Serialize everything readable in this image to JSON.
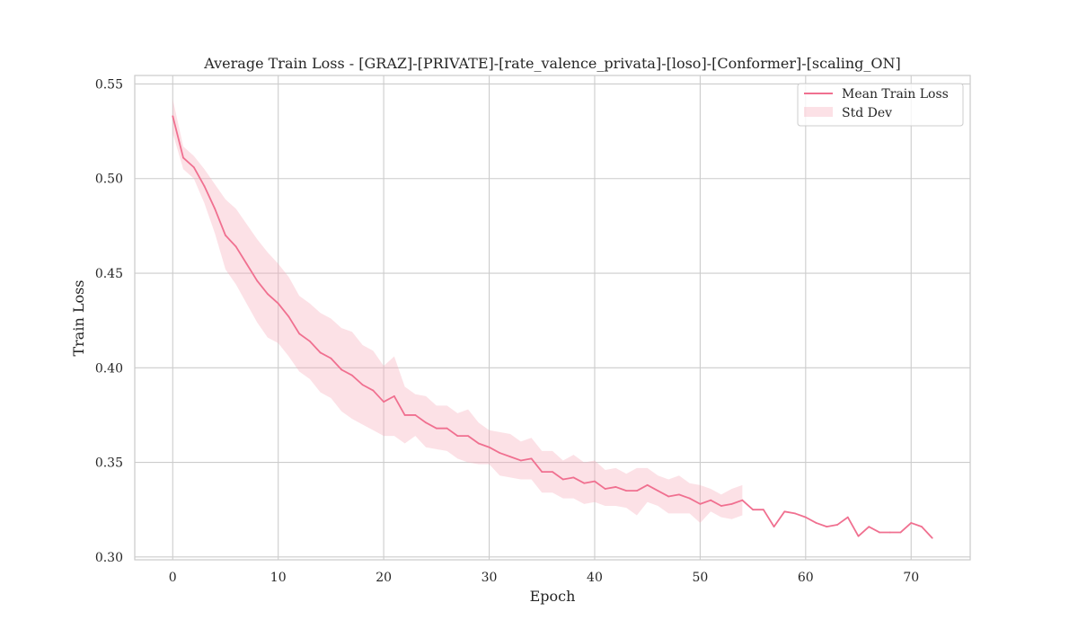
{
  "chart_data": {
    "type": "line",
    "title": "Average Train Loss - [GRAZ]-[PRIVATE]-[rate_valence_privata]-[loso]-[Conformer]-[scaling_ON]",
    "xlabel": "Epoch",
    "ylabel": "Train Loss",
    "xlim": [
      -3.6,
      75.6
    ],
    "ylim": [
      0.2985,
      0.5545
    ],
    "xticks": [
      0,
      10,
      20,
      30,
      40,
      50,
      60,
      70
    ],
    "yticks": [
      0.3,
      0.35,
      0.4,
      0.45,
      0.5,
      0.55
    ],
    "xtick_labels": [
      "0",
      "10",
      "20",
      "30",
      "40",
      "50",
      "60",
      "70"
    ],
    "ytick_labels": [
      "0.30",
      "0.35",
      "0.40",
      "0.45",
      "0.50",
      "0.55"
    ],
    "grid": true,
    "legend_position": "top-right",
    "series": [
      {
        "name": "Mean Train Loss",
        "type": "line",
        "color": "#f07090",
        "x": [
          0,
          1,
          2,
          3,
          4,
          5,
          6,
          7,
          8,
          9,
          10,
          11,
          12,
          13,
          14,
          15,
          16,
          17,
          18,
          19,
          20,
          21,
          22,
          23,
          24,
          25,
          26,
          27,
          28,
          29,
          30,
          31,
          32,
          33,
          34,
          35,
          36,
          37,
          38,
          39,
          40,
          41,
          42,
          43,
          44,
          45,
          46,
          47,
          48,
          49,
          50,
          51,
          52,
          53,
          54,
          55,
          56,
          57,
          58,
          59,
          60,
          61,
          62,
          63,
          64,
          65,
          66,
          67,
          68,
          69,
          70,
          71,
          72
        ],
        "y": [
          0.533,
          0.511,
          0.506,
          0.496,
          0.484,
          0.47,
          0.464,
          0.455,
          0.446,
          0.439,
          0.434,
          0.427,
          0.418,
          0.414,
          0.408,
          0.405,
          0.399,
          0.396,
          0.391,
          0.388,
          0.382,
          0.385,
          0.375,
          0.375,
          0.371,
          0.368,
          0.368,
          0.364,
          0.364,
          0.36,
          0.358,
          0.355,
          0.353,
          0.351,
          0.352,
          0.345,
          0.345,
          0.341,
          0.342,
          0.339,
          0.34,
          0.336,
          0.337,
          0.335,
          0.335,
          0.338,
          0.335,
          0.332,
          0.333,
          0.331,
          0.328,
          0.33,
          0.327,
          0.328,
          0.33,
          0.325,
          0.325,
          0.316,
          0.324,
          0.323,
          0.321,
          0.318,
          0.316,
          0.317,
          0.321,
          0.311,
          0.316,
          0.313,
          0.313,
          0.313,
          0.318,
          0.316,
          0.31
        ]
      },
      {
        "name": "Std Dev",
        "type": "band",
        "color": "#f7a8b8",
        "x": [
          0,
          1,
          2,
          3,
          4,
          5,
          6,
          7,
          8,
          9,
          10,
          11,
          12,
          13,
          14,
          15,
          16,
          17,
          18,
          19,
          20,
          21,
          22,
          23,
          24,
          25,
          26,
          27,
          28,
          29,
          30,
          31,
          32,
          33,
          34,
          35,
          36,
          37,
          38,
          39,
          40,
          41,
          42,
          43,
          44,
          45,
          46,
          47,
          48,
          49,
          50,
          51,
          52,
          53,
          54
        ],
        "upper": [
          0.542,
          0.517,
          0.512,
          0.505,
          0.497,
          0.489,
          0.484,
          0.476,
          0.468,
          0.461,
          0.455,
          0.448,
          0.438,
          0.434,
          0.429,
          0.426,
          0.421,
          0.419,
          0.412,
          0.409,
          0.401,
          0.406,
          0.39,
          0.386,
          0.385,
          0.38,
          0.38,
          0.376,
          0.378,
          0.371,
          0.367,
          0.366,
          0.365,
          0.361,
          0.363,
          0.356,
          0.356,
          0.351,
          0.354,
          0.35,
          0.351,
          0.346,
          0.347,
          0.344,
          0.347,
          0.347,
          0.343,
          0.341,
          0.343,
          0.339,
          0.338,
          0.336,
          0.333,
          0.336,
          0.338
        ],
        "lower": [
          0.524,
          0.505,
          0.5,
          0.487,
          0.471,
          0.452,
          0.444,
          0.434,
          0.424,
          0.416,
          0.413,
          0.406,
          0.398,
          0.394,
          0.387,
          0.384,
          0.377,
          0.373,
          0.37,
          0.367,
          0.364,
          0.364,
          0.36,
          0.364,
          0.358,
          0.357,
          0.356,
          0.352,
          0.35,
          0.349,
          0.349,
          0.343,
          0.342,
          0.341,
          0.341,
          0.334,
          0.334,
          0.331,
          0.331,
          0.328,
          0.329,
          0.327,
          0.327,
          0.326,
          0.322,
          0.329,
          0.327,
          0.323,
          0.323,
          0.323,
          0.318,
          0.324,
          0.321,
          0.32,
          0.322
        ]
      }
    ]
  }
}
